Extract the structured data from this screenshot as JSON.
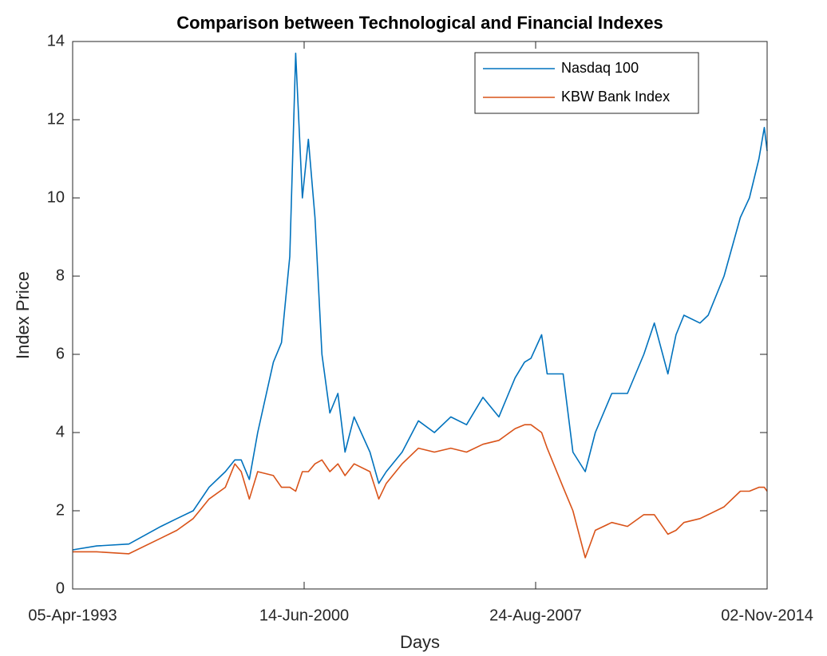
{
  "chart_data": {
    "type": "line",
    "title": "Comparison between Technological and Financial Indexes",
    "xlabel": "Days",
    "ylabel": "Index Price",
    "x": [
      "1993-04-05",
      "1994-01-03",
      "1995-01-03",
      "1996-01-02",
      "1996-07-01",
      "1997-01-02",
      "1997-07-01",
      "1998-01-02",
      "1998-04-20",
      "1998-07-01",
      "1998-10-01",
      "1999-01-04",
      "1999-07-01",
      "1999-10-01",
      "2000-01-03",
      "2000-03-10",
      "2000-05-25",
      "2000-08-01",
      "2000-10-15",
      "2001-01-02",
      "2001-04-02",
      "2001-07-02",
      "2001-09-21",
      "2002-01-02",
      "2002-07-01",
      "2002-10-09",
      "2003-01-02",
      "2003-07-01",
      "2004-01-02",
      "2004-07-01",
      "2005-01-03",
      "2005-07-01",
      "2006-01-03",
      "2006-07-03",
      "2007-01-03",
      "2007-04-20",
      "2007-07-02",
      "2007-10-31",
      "2008-01-02",
      "2008-07-01",
      "2008-10-20",
      "2009-03-09",
      "2009-07-01",
      "2010-01-04",
      "2010-07-01",
      "2011-01-03",
      "2011-05-02",
      "2011-10-03",
      "2012-01-03",
      "2012-04-02",
      "2012-10-01",
      "2013-01-02",
      "2013-07-01",
      "2014-01-02",
      "2014-04-15",
      "2014-08-01",
      "2014-10-01",
      "2014-11-02"
    ],
    "series": [
      {
        "name": "Nasdaq 100",
        "color": "#0072bd",
        "values": [
          1.0,
          1.1,
          1.15,
          1.6,
          1.8,
          2.0,
          2.6,
          3.0,
          3.3,
          3.3,
          2.8,
          4.0,
          5.8,
          6.3,
          8.5,
          13.7,
          10.0,
          11.5,
          9.5,
          6.0,
          4.5,
          5.0,
          3.5,
          4.4,
          3.5,
          2.7,
          3.0,
          3.5,
          4.3,
          4.0,
          4.4,
          4.2,
          4.9,
          4.4,
          5.4,
          5.8,
          5.9,
          6.5,
          5.5,
          5.5,
          3.5,
          3.0,
          4.0,
          5.0,
          5.0,
          6.0,
          6.8,
          5.5,
          6.5,
          7.0,
          6.8,
          7.0,
          8.0,
          9.5,
          10.0,
          11.0,
          11.8,
          11.2
        ]
      },
      {
        "name": "KBW Bank Index",
        "color": "#d95319",
        "values": [
          0.95,
          0.95,
          0.9,
          1.3,
          1.5,
          1.8,
          2.3,
          2.6,
          3.2,
          3.0,
          2.3,
          3.0,
          2.9,
          2.6,
          2.6,
          2.5,
          3.0,
          3.0,
          3.2,
          3.3,
          3.0,
          3.2,
          2.9,
          3.2,
          3.0,
          2.3,
          2.7,
          3.2,
          3.6,
          3.5,
          3.6,
          3.5,
          3.7,
          3.8,
          4.1,
          4.2,
          4.2,
          4.0,
          3.6,
          2.6,
          2.0,
          0.8,
          1.5,
          1.7,
          1.6,
          1.9,
          1.9,
          1.4,
          1.5,
          1.7,
          1.8,
          1.9,
          2.1,
          2.5,
          2.5,
          2.6,
          2.6,
          2.5
        ]
      }
    ],
    "xlim": [
      "1993-04-05",
      "2014-11-02"
    ],
    "xticks": [
      {
        "value": "1993-04-05",
        "label": "05-Apr-1993"
      },
      {
        "value": "2000-06-14",
        "label": "14-Jun-2000"
      },
      {
        "value": "2007-08-24",
        "label": "24-Aug-2007"
      },
      {
        "value": "2014-11-02",
        "label": "02-Nov-2014"
      }
    ],
    "ylim": [
      0,
      14
    ],
    "yticks": [
      0,
      2,
      4,
      6,
      8,
      10,
      12,
      14
    ],
    "grid": false,
    "legend": "northeast"
  }
}
